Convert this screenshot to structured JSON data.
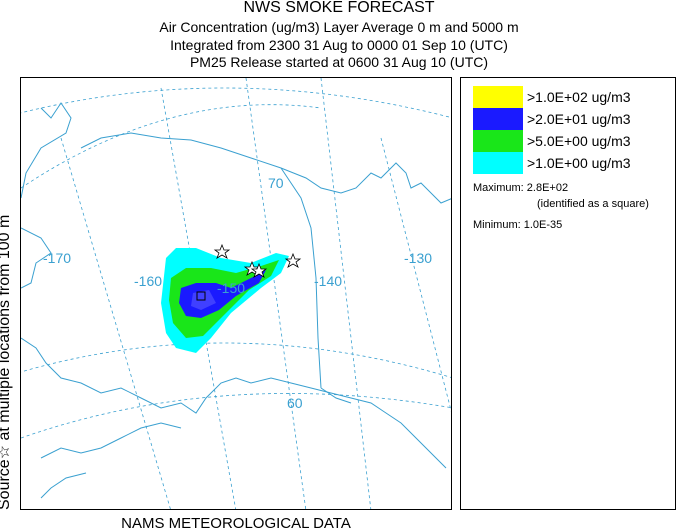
{
  "header": {
    "title": "NWS SMOKE FORECAST",
    "line2": "Air Concentration (ug/m3) Layer Average    0 m and  5000 m",
    "line3": "Integrated from 2300 31 Aug to 0000 01 Sep 10 (UTC)",
    "line4": "PM25 Release started at 0600 31 Aug 10 (UTC)"
  },
  "side_label": "Source☆ at multiple locations  from  100 m",
  "footer": "NAMS METEOROLOGICAL DATA",
  "map": {
    "lon_labels": [
      "-170",
      "-160",
      "-150",
      "-140",
      "-130"
    ],
    "lat_labels": [
      "70",
      "60"
    ],
    "graticule_color": "#3aa0d0",
    "coast_color": "#3aa0d0"
  },
  "legend": {
    "items": [
      {
        "label": ">1.0E+02 ug/m3",
        "color": "#ffff00"
      },
      {
        "label": ">2.0E+01 ug/m3",
        "color": "#1a1aff"
      },
      {
        "label": ">5.0E+00 ug/m3",
        "color": "#19e619"
      },
      {
        "label": ">1.0E+00 ug/m3",
        "color": "#00ffff"
      }
    ],
    "maximum": "Maximum: 2.8E+02",
    "maximum_note": "(identified as a square)",
    "minimum": "Minimum: 1.0E-35"
  }
}
